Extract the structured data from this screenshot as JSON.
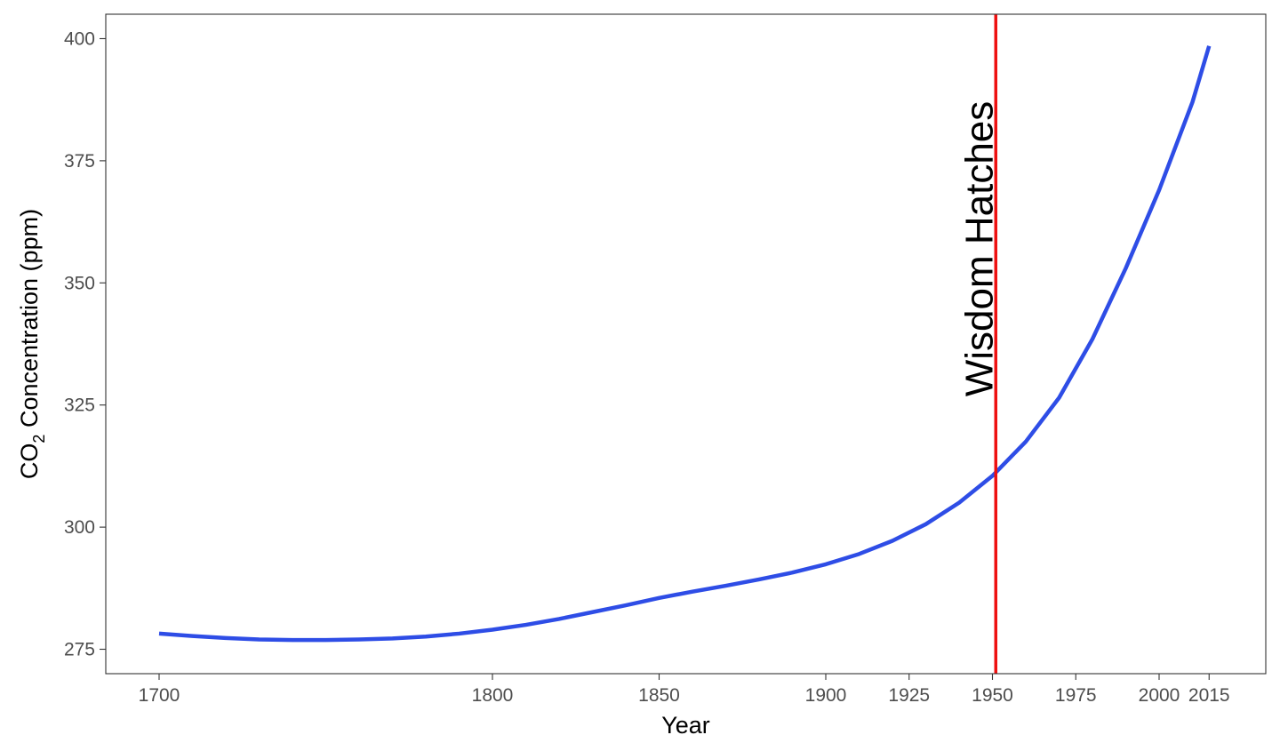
{
  "chart_data": {
    "type": "line",
    "title": "",
    "xlabel": "Year",
    "ylabel": {
      "prefix": "CO",
      "subscript": "2",
      "suffix": " Concentration (ppm)"
    },
    "xlim": [
      1684,
      2032
    ],
    "ylim": [
      270,
      405
    ],
    "x_ticks": [
      1700,
      1800,
      1850,
      1900,
      1925,
      1950,
      1975,
      2000,
      2015
    ],
    "y_ticks": [
      275,
      300,
      325,
      350,
      375,
      400
    ],
    "grid": false,
    "legend": "none",
    "series": [
      {
        "color": "#2e4de6",
        "x": [
          1700,
          1710,
          1720,
          1730,
          1740,
          1750,
          1760,
          1770,
          1780,
          1790,
          1800,
          1810,
          1820,
          1830,
          1840,
          1850,
          1860,
          1870,
          1880,
          1890,
          1900,
          1910,
          1920,
          1930,
          1940,
          1950,
          1960,
          1970,
          1980,
          1990,
          2000,
          2010,
          2015
        ],
        "y": [
          278.2,
          277.7,
          277.3,
          277.0,
          276.9,
          276.9,
          277.0,
          277.2,
          277.6,
          278.2,
          279.0,
          280.0,
          281.2,
          282.6,
          284.0,
          285.5,
          286.8,
          288.0,
          289.3,
          290.7,
          292.4,
          294.5,
          297.2,
          300.6,
          305.0,
          310.5,
          317.5,
          326.5,
          338.5,
          353.0,
          369.0,
          387.0,
          398.5
        ]
      }
    ],
    "annotations": [
      {
        "type": "vline",
        "x": 1951,
        "color": "#ee1111",
        "label": "Wisdom Hatches"
      }
    ]
  }
}
